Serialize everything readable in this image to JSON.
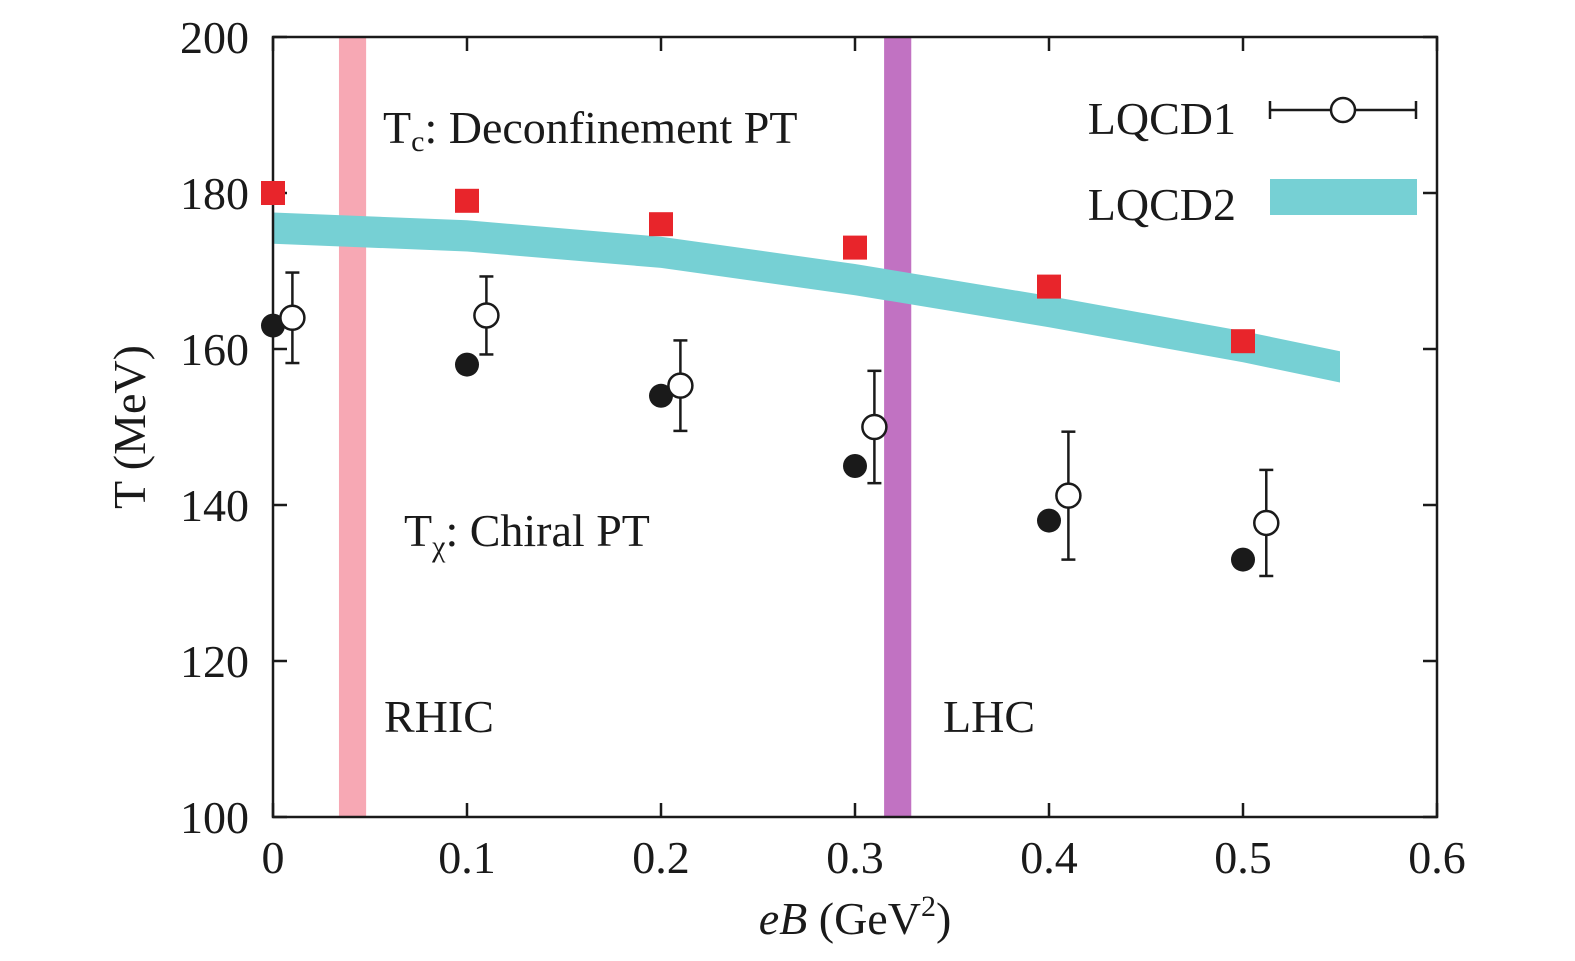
{
  "chart_data": {
    "type": "scatter",
    "xlabel_italic": "eB",
    "xlabel_unit_pre": " (GeV",
    "xlabel_unit_sup": "2",
    "xlabel_unit_post": ")",
    "ylabel": "T (MeV)",
    "xlim": [
      0,
      0.6
    ],
    "ylim": [
      100,
      200
    ],
    "x_ticks": [
      "0",
      "0.1",
      "0.2",
      "0.3",
      "0.4",
      "0.5",
      "0.6"
    ],
    "y_ticks": [
      "100",
      "120",
      "140",
      "160",
      "180",
      "200"
    ],
    "legend_position": "top-right",
    "grid": false,
    "series": [
      {
        "name": "LQCD1",
        "marker": "open-circle-errorbar",
        "color": "#1a1a1a",
        "points": [
          {
            "x": 0.01,
            "y": 164,
            "err": 5.8
          },
          {
            "x": 0.11,
            "y": 164.3,
            "err": 5
          },
          {
            "x": 0.21,
            "y": 155.3,
            "err": 5.8
          },
          {
            "x": 0.31,
            "y": 150,
            "err": 7.2
          },
          {
            "x": 0.41,
            "y": 141.2,
            "err": 8.2
          },
          {
            "x": 0.512,
            "y": 137.7,
            "err": 6.8
          }
        ]
      },
      {
        "name": "LQCD2",
        "marker": "band",
        "color": "#76d0d4",
        "x": [
          0,
          0.1,
          0.2,
          0.3,
          0.4,
          0.5,
          0.55
        ],
        "y": [
          175.5,
          174.5,
          172.4,
          168.9,
          164.8,
          160.3,
          157.7
        ],
        "halfwidth": 2.0
      },
      {
        "marker": "filled-circle",
        "color": "#1a1a1a",
        "x": [
          0,
          0.1,
          0.2,
          0.3,
          0.4,
          0.5
        ],
        "y": [
          163,
          158,
          154,
          145,
          138,
          133
        ]
      },
      {
        "marker": "filled-square",
        "color": "#e8252b",
        "x": [
          0,
          0.1,
          0.2,
          0.3,
          0.4,
          0.5
        ],
        "y": [
          180,
          179,
          176,
          173,
          168,
          161
        ]
      }
    ],
    "bands": [
      {
        "name": "RHIC",
        "label": "RHIC",
        "x0": 0.034,
        "x1": 0.048,
        "color": "#f7a8b4"
      },
      {
        "name": "LHC",
        "label": "LHC",
        "x0": 0.315,
        "x1": 0.329,
        "color": "#c172c2"
      }
    ],
    "annotations": [
      {
        "id": "deconf",
        "main": "T",
        "sub": "c",
        "rest": ": Deconfinement PT"
      },
      {
        "id": "chiral",
        "main": "T",
        "sub": "χ",
        "rest": ": Chiral PT"
      }
    ]
  }
}
